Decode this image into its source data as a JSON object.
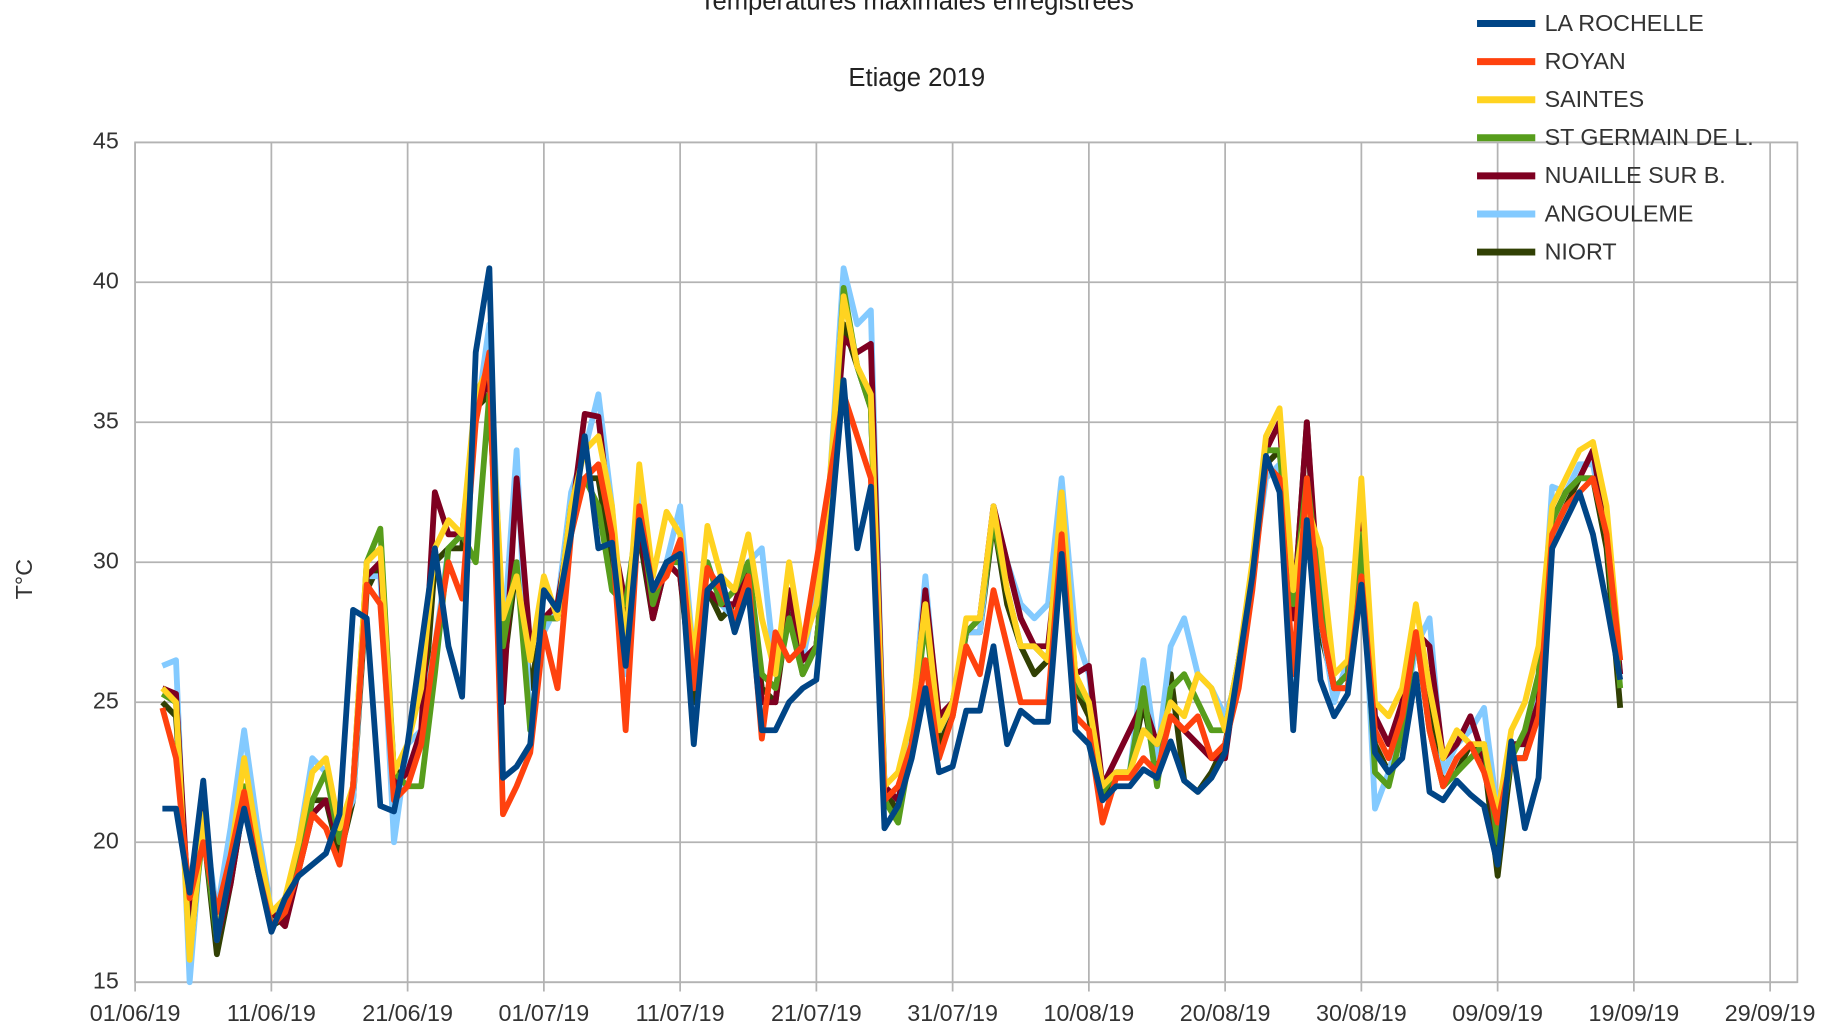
{
  "chart_data": {
    "type": "line",
    "title": "Températures maximales enregistrées",
    "subtitle": "Etiage 2019",
    "y_label": "T°C",
    "grid": true,
    "legend": "upper right",
    "xlim": [
      "01/06/19",
      "01/10/19"
    ],
    "xticks": [
      "01/06/19",
      "11/06/19",
      "21/06/19",
      "01/07/19",
      "11/07/19",
      "21/07/19",
      "31/07/19",
      "10/08/19",
      "20/08/19",
      "30/08/19",
      "09/09/19",
      "19/09/19",
      "29/09/19"
    ],
    "ylim": [
      15,
      45
    ],
    "yticks": [
      15,
      20,
      25,
      30,
      35,
      40,
      45
    ],
    "x": [
      "03/06/19",
      "04/06/19",
      "05/06/19",
      "06/06/19",
      "07/06/19",
      "08/06/19",
      "09/06/19",
      "10/06/19",
      "11/06/19",
      "12/06/19",
      "13/06/19",
      "14/06/19",
      "15/06/19",
      "16/06/19",
      "17/06/19",
      "18/06/19",
      "19/06/19",
      "20/06/19",
      "21/06/19",
      "22/06/19",
      "23/06/19",
      "24/06/19",
      "25/06/19",
      "26/06/19",
      "27/06/19",
      "28/06/19",
      "29/06/19",
      "30/06/19",
      "01/07/19",
      "02/07/19",
      "03/07/19",
      "04/07/19",
      "05/07/19",
      "06/07/19",
      "07/07/19",
      "08/07/19",
      "09/07/19",
      "10/07/19",
      "11/07/19",
      "12/07/19",
      "13/07/19",
      "14/07/19",
      "15/07/19",
      "16/07/19",
      "17/07/19",
      "18/07/19",
      "19/07/19",
      "20/07/19",
      "21/07/19",
      "22/07/19",
      "23/07/19",
      "24/07/19",
      "25/07/19",
      "26/07/19",
      "27/07/19",
      "28/07/19",
      "29/07/19",
      "30/07/19",
      "31/07/19",
      "01/08/19",
      "02/08/19",
      "03/08/19",
      "04/08/19",
      "05/08/19",
      "06/08/19",
      "07/08/19",
      "08/08/19",
      "09/08/19",
      "10/08/19",
      "11/08/19",
      "12/08/19",
      "13/08/19",
      "14/08/19",
      "15/08/19",
      "16/08/19",
      "17/08/19",
      "18/08/19",
      "19/08/19",
      "20/08/19",
      "21/08/19",
      "22/08/19",
      "23/08/19",
      "24/08/19",
      "25/08/19",
      "26/08/19",
      "27/08/19",
      "28/08/19",
      "29/08/19",
      "30/08/19",
      "31/08/19",
      "01/09/19",
      "02/09/19",
      "03/09/19",
      "04/09/19",
      "05/09/19",
      "06/09/19",
      "07/09/19",
      "08/09/19",
      "09/09/19",
      "10/09/19",
      "11/09/19",
      "12/09/19",
      "13/09/19",
      "14/09/19",
      "15/09/19",
      "16/09/19",
      "17/09/19",
      "18/09/19"
    ],
    "series": [
      {
        "name": "LA ROCHELLE",
        "color": "#004586",
        "values": [
          21.2,
          21.2,
          18.2,
          22.2,
          16.5,
          19,
          21.2,
          19,
          16.8,
          18,
          18.8,
          19.2,
          19.6,
          21,
          28.3,
          28,
          21.3,
          21.1,
          23.5,
          27,
          30.5,
          27,
          25.2,
          37.5,
          40.5,
          22.3,
          22.7,
          23.5,
          29,
          28.3,
          31,
          34.5,
          30.5,
          30.7,
          26.3,
          31.5,
          29,
          30,
          30.3,
          23.5,
          29,
          29.5,
          27.5,
          29,
          24,
          24,
          25,
          25.5,
          25.8,
          31,
          36.5,
          30.5,
          32.7,
          20.5,
          21.3,
          23,
          25.5,
          22.5,
          22.7,
          24.7,
          24.7,
          27,
          23.5,
          24.7,
          24.3,
          24.3,
          30.3,
          24,
          23.5,
          21.5,
          22,
          22,
          22.6,
          22.3,
          23.6,
          22.2,
          21.8,
          22.3,
          23.2,
          26.3,
          29.5,
          33.8,
          32.5,
          24,
          31.5,
          25.8,
          24.5,
          25.3,
          29.2,
          23.2,
          22.5,
          23,
          26,
          21.8,
          21.5,
          22.2,
          21.7,
          21.3,
          19.2,
          23.6,
          20.5,
          22.3,
          30.5,
          31.5,
          32.5,
          31,
          28.5,
          25.8
        ]
      },
      {
        "name": "ROYAN",
        "color": "#ff420e",
        "values": [
          24.8,
          23,
          18,
          20,
          17.5,
          19.5,
          21.8,
          19,
          17,
          17.5,
          19,
          21,
          20.5,
          19.2,
          22,
          29.2,
          28.5,
          21.5,
          22,
          23.5,
          27,
          30,
          28.7,
          35,
          37.5,
          21,
          22,
          23.2,
          27.5,
          25.5,
          31,
          33,
          33.5,
          31,
          24,
          32,
          29,
          29.5,
          30.8,
          25.5,
          29.8,
          29,
          28,
          29.5,
          23.7,
          27.5,
          26.5,
          27,
          30,
          33,
          36,
          34.5,
          33,
          21.5,
          22,
          23.5,
          26.5,
          23,
          24.5,
          27,
          26,
          29,
          27,
          25,
          25,
          25,
          31,
          24.5,
          24,
          20.7,
          22.3,
          22.3,
          23,
          22.5,
          24.5,
          24,
          24.5,
          23,
          23.5,
          25.5,
          29,
          33.5,
          33,
          26,
          33,
          28,
          25.5,
          25.5,
          29.5,
          24,
          23,
          24.5,
          27.5,
          24,
          22,
          23,
          23.5,
          22.5,
          20.7,
          23,
          23,
          24.5,
          31,
          32,
          32.5,
          33,
          31,
          26.5
        ]
      },
      {
        "name": "SAINTES",
        "color": "#ffd320",
        "values": [
          25.5,
          25,
          15.8,
          21,
          17,
          19.5,
          23,
          20,
          17.5,
          18,
          20,
          22.5,
          23,
          20.5,
          22,
          30,
          30.5,
          22.5,
          23.5,
          25.5,
          30.5,
          31.5,
          31,
          36,
          37,
          28,
          29.5,
          26.5,
          29.5,
          28,
          32,
          34,
          34.5,
          32,
          27,
          33.5,
          29.5,
          31.8,
          31,
          26.5,
          31.3,
          29.5,
          29,
          31,
          28,
          26,
          30,
          27,
          28.5,
          33,
          39.5,
          37,
          36,
          22,
          22.5,
          24.5,
          28.5,
          24,
          25,
          28,
          28,
          32,
          29,
          27,
          27,
          26.5,
          32.5,
          26,
          25,
          22,
          22.5,
          22.5,
          24,
          23.5,
          25,
          24.5,
          26,
          25.5,
          24,
          26.5,
          30,
          34.5,
          35.5,
          29,
          32,
          30.5,
          26,
          26.5,
          33,
          25,
          24.5,
          25.5,
          28.5,
          25.5,
          23,
          24,
          23.5,
          23.5,
          21,
          24,
          25,
          27,
          32,
          33,
          34,
          34.3,
          32,
          26.5
        ]
      },
      {
        "name": "ST GERMAIN DE L.",
        "color": "#579d1c",
        "values": [
          25.3,
          25,
          16,
          20.5,
          16.5,
          19,
          22,
          19.5,
          17,
          17.5,
          19.5,
          21.5,
          22.5,
          20,
          22,
          30,
          31.2,
          22.5,
          22,
          22,
          26,
          30.5,
          31,
          30,
          36,
          27,
          30,
          24,
          28,
          28,
          32,
          33,
          32,
          29,
          28.5,
          32,
          28.5,
          30,
          30,
          25.5,
          30,
          28.5,
          29,
          30,
          26,
          25.5,
          28,
          26,
          27,
          32,
          39.8,
          37,
          35.5,
          21.5,
          20.7,
          23.5,
          28,
          24,
          25,
          27.5,
          28,
          31.5,
          29,
          27,
          27,
          26.5,
          31.5,
          25.5,
          25,
          21.8,
          22.5,
          22.5,
          25.5,
          22,
          25.5,
          26,
          25,
          24,
          24,
          26.5,
          29.5,
          34,
          34,
          28.5,
          33,
          29,
          25.5,
          26,
          31,
          22.5,
          22,
          24,
          27.5,
          24,
          22,
          22.5,
          23,
          23.5,
          20,
          23,
          24,
          26,
          31.5,
          32.5,
          33,
          33,
          31,
          25.5
        ]
      },
      {
        "name": "NUAILLE SUR B.",
        "color": "#7e0021",
        "values": [
          25.5,
          25.3,
          17,
          21.5,
          16.5,
          18.5,
          21.5,
          19.5,
          17.5,
          17,
          19,
          21,
          21.5,
          20,
          22,
          29.5,
          30,
          22,
          22.5,
          24,
          32.5,
          31,
          31,
          35.5,
          36.5,
          25,
          33,
          27,
          28,
          28.5,
          31.5,
          35.3,
          35.2,
          31,
          28.5,
          31.5,
          28,
          30,
          29.5,
          25.5,
          29,
          28.5,
          28.5,
          30,
          25,
          25,
          29,
          26.5,
          27,
          32,
          38,
          37.5,
          37.8,
          22,
          21.5,
          23.5,
          29,
          24.5,
          25,
          27.5,
          28,
          32,
          30,
          28,
          27,
          27,
          31.5,
          26,
          26.3,
          22,
          23,
          24,
          25,
          23.5,
          24.5,
          24,
          23.5,
          23,
          23,
          26.5,
          29.5,
          34,
          35,
          28,
          35,
          28,
          25.5,
          26,
          32,
          24.5,
          23.5,
          25,
          27.5,
          27,
          23,
          23.5,
          24.5,
          23,
          20,
          23.5,
          23.5,
          25,
          31.5,
          32.5,
          33,
          34,
          31,
          26
        ]
      },
      {
        "name": "ANGOULEME",
        "color": "#83caff",
        "values": [
          26.3,
          26.5,
          15,
          21,
          17.5,
          20.5,
          24,
          20.5,
          17.5,
          17.8,
          20,
          23,
          22.5,
          20.5,
          21.5,
          29.5,
          29.5,
          20,
          23.5,
          24,
          27,
          30.5,
          31,
          35,
          38.5,
          27,
          34,
          24,
          27.5,
          28.5,
          32.5,
          34,
          36,
          32,
          26,
          32.5,
          28.5,
          30,
          32,
          26.5,
          30,
          28.5,
          28,
          30,
          30.5,
          26,
          29,
          26.5,
          29,
          33,
          40.5,
          38.5,
          39,
          22,
          21.5,
          24,
          29.5,
          24,
          25,
          27.5,
          27.5,
          32,
          30,
          28.5,
          28,
          28.5,
          33,
          27.5,
          26,
          22,
          22.5,
          22.5,
          26.5,
          23,
          27,
          28,
          26,
          25.5,
          24.5,
          26,
          29.5,
          33,
          33.5,
          28,
          33,
          28,
          25,
          26.5,
          31,
          21.2,
          22.5,
          24,
          27,
          28,
          22.5,
          23.5,
          24,
          24.8,
          21,
          23.5,
          23.5,
          25.5,
          32.7,
          32.5,
          33.5,
          33.5,
          31,
          26
        ]
      },
      {
        "name": "NIORT",
        "color": "#314004",
        "values": [
          25,
          24.5,
          17,
          20.5,
          16,
          18.5,
          21.5,
          19,
          17,
          17.3,
          19,
          21.5,
          21.5,
          19.5,
          21.5,
          29,
          30,
          22.5,
          22.5,
          23.5,
          30,
          30.5,
          30.5,
          35.5,
          36,
          26,
          30,
          25.5,
          28,
          28,
          32,
          33,
          33,
          30,
          28,
          31,
          28,
          30,
          29.5,
          25,
          29,
          28,
          28.5,
          29.5,
          25.5,
          25,
          28.5,
          26,
          27,
          32,
          38.5,
          37,
          35.5,
          22,
          21,
          23.5,
          28.5,
          23.5,
          24.5,
          27.5,
          27.5,
          31.5,
          28.5,
          27,
          26,
          26.5,
          31.5,
          25.5,
          24.5,
          21.5,
          22.3,
          22.5,
          25,
          22.5,
          26,
          22.2,
          21.8,
          22.5,
          23.5,
          26,
          29.5,
          33.5,
          34,
          28,
          35,
          27.5,
          25.5,
          25.5,
          30,
          23.5,
          22.5,
          24,
          27.5,
          25,
          22,
          22.5,
          23.5,
          23,
          18.8,
          23,
          23,
          25,
          31,
          32,
          33,
          33,
          30.5,
          24.8
        ]
      }
    ]
  }
}
